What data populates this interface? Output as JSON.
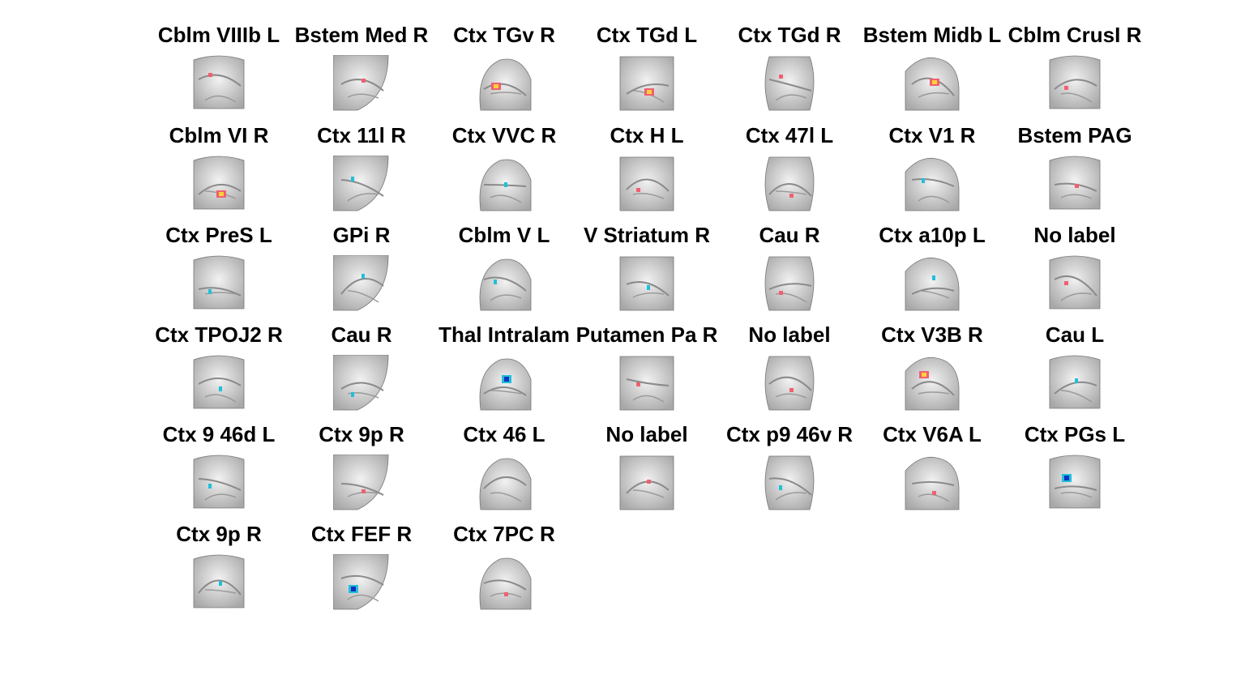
{
  "colors": {
    "background": "#ffffff",
    "brain_tissue": "#d6d6d6",
    "positive_activation": "#f06070",
    "positive_peak": "#ffd23a",
    "negative_activation": "#20c0d8",
    "negative_peak": "#1030c0"
  },
  "panels": [
    {
      "label": "Cblm VIIIb L",
      "blob": "pos",
      "icon": "brain-slice-icon"
    },
    {
      "label": "Bstem Med R",
      "blob": "pos",
      "icon": "brain-slice-icon"
    },
    {
      "label": "Ctx TGv R",
      "blob": "pos-strong",
      "icon": "brain-slice-icon"
    },
    {
      "label": "Ctx TGd L",
      "blob": "pos-strong",
      "icon": "brain-slice-icon"
    },
    {
      "label": "Ctx TGd R",
      "blob": "pos",
      "icon": "brain-slice-icon"
    },
    {
      "label": "Bstem Midb L",
      "blob": "pos-strong",
      "icon": "brain-slice-icon"
    },
    {
      "label": "Cblm CrusI R",
      "blob": "pos",
      "icon": "brain-slice-icon"
    },
    {
      "label": "Cblm VI R",
      "blob": "pos-strong",
      "icon": "brain-slice-icon"
    },
    {
      "label": "Ctx 11l R",
      "blob": "neg",
      "icon": "brain-slice-icon"
    },
    {
      "label": "Ctx VVC R",
      "blob": "neg",
      "icon": "brain-slice-icon"
    },
    {
      "label": "Ctx H L",
      "blob": "pos",
      "icon": "brain-slice-icon"
    },
    {
      "label": "Ctx 47l L",
      "blob": "pos",
      "icon": "brain-slice-icon"
    },
    {
      "label": "Ctx V1 R",
      "blob": "neg",
      "icon": "brain-slice-icon"
    },
    {
      "label": "Bstem PAG",
      "blob": "pos",
      "icon": "brain-slice-icon"
    },
    {
      "label": "Ctx PreS L",
      "blob": "neg",
      "icon": "brain-slice-icon"
    },
    {
      "label": "GPi R",
      "blob": "neg",
      "icon": "brain-slice-icon"
    },
    {
      "label": "Cblm V L",
      "blob": "neg",
      "icon": "brain-slice-icon"
    },
    {
      "label": "V Striatum R",
      "blob": "neg",
      "icon": "brain-slice-icon"
    },
    {
      "label": "Cau R",
      "blob": "pos",
      "icon": "brain-slice-icon"
    },
    {
      "label": "Ctx a10p L",
      "blob": "neg",
      "icon": "brain-slice-icon"
    },
    {
      "label": "No label",
      "blob": "pos",
      "icon": "brain-slice-icon"
    },
    {
      "label": "Ctx TPOJ2 R",
      "blob": "neg",
      "icon": "brain-slice-icon"
    },
    {
      "label": "Cau R",
      "blob": "neg",
      "icon": "brain-slice-icon"
    },
    {
      "label": "Thal Intralam",
      "blob": "neg-strong",
      "icon": "brain-slice-icon"
    },
    {
      "label": "Putamen Pa R",
      "blob": "pos",
      "icon": "brain-slice-icon"
    },
    {
      "label": "No label",
      "blob": "pos",
      "icon": "brain-slice-icon"
    },
    {
      "label": "Ctx V3B R",
      "blob": "pos-strong",
      "icon": "brain-slice-icon"
    },
    {
      "label": "Cau L",
      "blob": "neg",
      "icon": "brain-slice-icon"
    },
    {
      "label": "Ctx 9 46d L",
      "blob": "neg",
      "icon": "brain-slice-icon"
    },
    {
      "label": "Ctx 9p R",
      "blob": "pos",
      "icon": "brain-slice-icon"
    },
    {
      "label": "Ctx 46 L",
      "blob": "none",
      "icon": "brain-slice-icon"
    },
    {
      "label": "No label",
      "blob": "pos",
      "icon": "brain-slice-icon"
    },
    {
      "label": "Ctx p9 46v R",
      "blob": "neg",
      "icon": "brain-slice-icon"
    },
    {
      "label": "Ctx V6A L",
      "blob": "pos",
      "icon": "brain-slice-icon"
    },
    {
      "label": "Ctx PGs L",
      "blob": "neg-strong",
      "icon": "brain-slice-icon"
    },
    {
      "label": "Ctx 9p R",
      "blob": "neg",
      "icon": "brain-slice-icon"
    },
    {
      "label": "Ctx FEF R",
      "blob": "neg-strong",
      "icon": "brain-slice-icon"
    },
    {
      "label": "Ctx 7PC R",
      "blob": "pos",
      "icon": "brain-slice-icon"
    }
  ]
}
